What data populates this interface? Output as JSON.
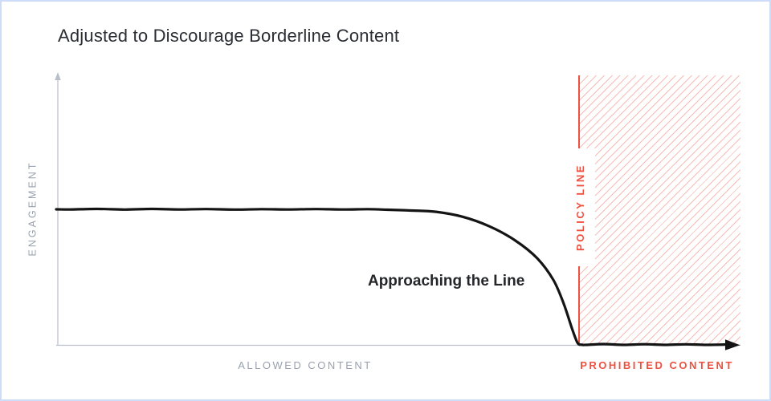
{
  "title": "Adjusted to Discourage Borderline Content",
  "colors": {
    "background": "#ffffff",
    "frame_border": "#cfdcf9",
    "title_text": "#2b2e34",
    "axis": "#b9bfc9",
    "muted_label": "#99a1af",
    "accent_red": "#ee5140",
    "curve": "#141414",
    "annotation_text": "#24262a",
    "hatch_line": "rgba(238,81,64,0.38)"
  },
  "chart_data": {
    "type": "line",
    "title": "Adjusted to Discourage Borderline Content",
    "xlabel": "",
    "ylabel": "ENGAGEMENT",
    "x_range": [
      0,
      1
    ],
    "y_range": [
      0,
      1
    ],
    "grid": false,
    "legend": "none",
    "x_region_labels": {
      "left": "ALLOWED CONTENT",
      "right": "PROHIBITED CONTENT"
    },
    "policy_line": {
      "label": "POLICY LINE",
      "x": 0.7641
    },
    "prohibited_region": {
      "from_x": 0.7641,
      "to_x": 1.0,
      "fill": "diagonal-hatch"
    },
    "annotation": {
      "text": "Approaching the Line",
      "x": 0.57,
      "y": 0.235
    },
    "series": [
      {
        "name": "Engagement",
        "color": "#141414",
        "points": [
          [
            0.0,
            0.503
          ],
          [
            0.02,
            0.5025
          ],
          [
            0.06,
            0.5045
          ],
          [
            0.1,
            0.502
          ],
          [
            0.14,
            0.5045
          ],
          [
            0.18,
            0.5025
          ],
          [
            0.22,
            0.504
          ],
          [
            0.26,
            0.502
          ],
          [
            0.3,
            0.5035
          ],
          [
            0.34,
            0.5025
          ],
          [
            0.38,
            0.504
          ],
          [
            0.42,
            0.5025
          ],
          [
            0.455,
            0.5035
          ],
          [
            0.484,
            0.5015
          ],
          [
            0.519,
            0.4985
          ],
          [
            0.554,
            0.494
          ],
          [
            0.593,
            0.476
          ],
          [
            0.633,
            0.44
          ],
          [
            0.671,
            0.387
          ],
          [
            0.703,
            0.321
          ],
          [
            0.7265,
            0.241
          ],
          [
            0.7418,
            0.152
          ],
          [
            0.7535,
            0.0625
          ],
          [
            0.7617,
            0.008
          ],
          [
            0.7676,
            0.0005
          ],
          [
            0.775,
            0.0
          ],
          [
            0.8,
            0.003
          ],
          [
            0.83,
            0.0
          ],
          [
            0.86,
            0.0025
          ],
          [
            0.89,
            0.0
          ],
          [
            0.92,
            0.002
          ],
          [
            0.95,
            0.0
          ],
          [
            0.98,
            0.0015
          ]
        ]
      }
    ]
  }
}
